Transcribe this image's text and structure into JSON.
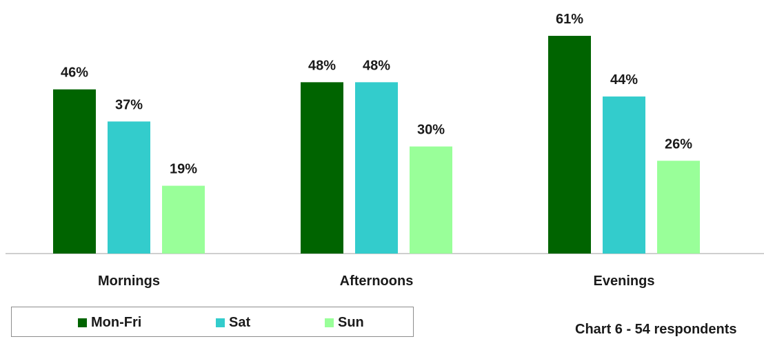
{
  "chart_data": {
    "type": "bar",
    "categories": [
      "Mornings",
      "Afternoons",
      "Evenings"
    ],
    "series": [
      {
        "name": "Mon-Fri",
        "values": [
          46,
          48,
          61
        ],
        "labels": [
          "46%",
          "48%",
          "61%"
        ],
        "color": "#006400"
      },
      {
        "name": "Sat",
        "values": [
          37,
          48,
          44
        ],
        "labels": [
          "37%",
          "48%",
          "44%"
        ],
        "color": "#33CCCC"
      },
      {
        "name": "Sun",
        "values": [
          19,
          30,
          26
        ],
        "labels": [
          "19%",
          "30%",
          "26%"
        ],
        "color": "#99FF99"
      }
    ],
    "unit": "%",
    "ylim": [
      0,
      61
    ],
    "grid": false,
    "legend_position": "bottom-left"
  },
  "caption": "Chart 6 - 54 respondents"
}
